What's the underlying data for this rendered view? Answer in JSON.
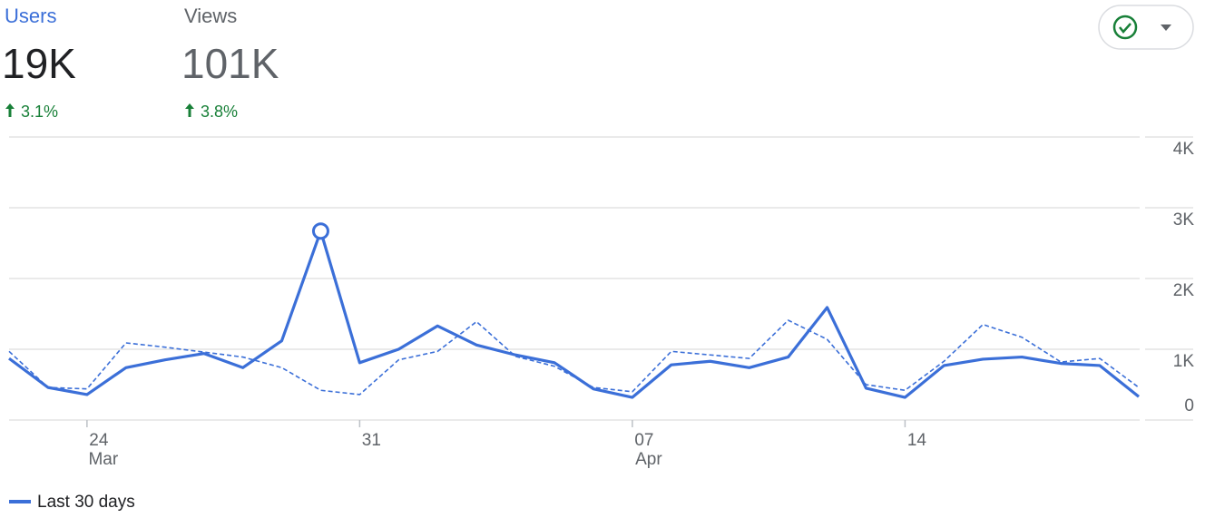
{
  "metrics": [
    {
      "name": "Users",
      "value": "19K",
      "change": "3.1%"
    },
    {
      "name": "Views",
      "value": "101K",
      "change": "3.8%"
    }
  ],
  "chart_data": {
    "type": "line",
    "categories": [
      null,
      null,
      "24",
      null,
      null,
      null,
      null,
      null,
      null,
      "31",
      null,
      null,
      null,
      null,
      null,
      null,
      "07",
      null,
      null,
      null,
      null,
      null,
      null,
      "14",
      null,
      null,
      null,
      null,
      null,
      null
    ],
    "sublabels": [
      null,
      null,
      "Mar",
      null,
      null,
      null,
      null,
      null,
      null,
      null,
      null,
      null,
      null,
      null,
      null,
      null,
      "Apr",
      null,
      null,
      null,
      null,
      null,
      null,
      null,
      null,
      null,
      null,
      null,
      null,
      null
    ],
    "series": [
      {
        "name": "Last 30 days",
        "color": "#3b6fd8",
        "style": "solid",
        "highlight_index": 8,
        "values": [
          870,
          460,
          360,
          740,
          850,
          940,
          740,
          1120,
          2670,
          810,
          1000,
          1330,
          1060,
          920,
          810,
          440,
          320,
          780,
          830,
          740,
          890,
          1590,
          450,
          320,
          770,
          860,
          890,
          800,
          770,
          330
        ]
      },
      {
        "color": "#3b6fd8",
        "style": "dashed",
        "values": [
          970,
          460,
          440,
          1090,
          1030,
          960,
          890,
          740,
          420,
          360,
          850,
          970,
          1390,
          900,
          760,
          460,
          400,
          970,
          920,
          870,
          1410,
          1140,
          500,
          420,
          830,
          1350,
          1170,
          820,
          870,
          460
        ]
      }
    ],
    "ylim": [
      0,
      4000
    ],
    "yticks": [
      {
        "value": 0,
        "label": "0"
      },
      {
        "value": 1000,
        "label": "1K"
      },
      {
        "value": 2000,
        "label": "2K"
      },
      {
        "value": 3000,
        "label": "3K"
      },
      {
        "value": 4000,
        "label": "4K"
      }
    ],
    "grid": true,
    "legend": "bottom-left"
  }
}
